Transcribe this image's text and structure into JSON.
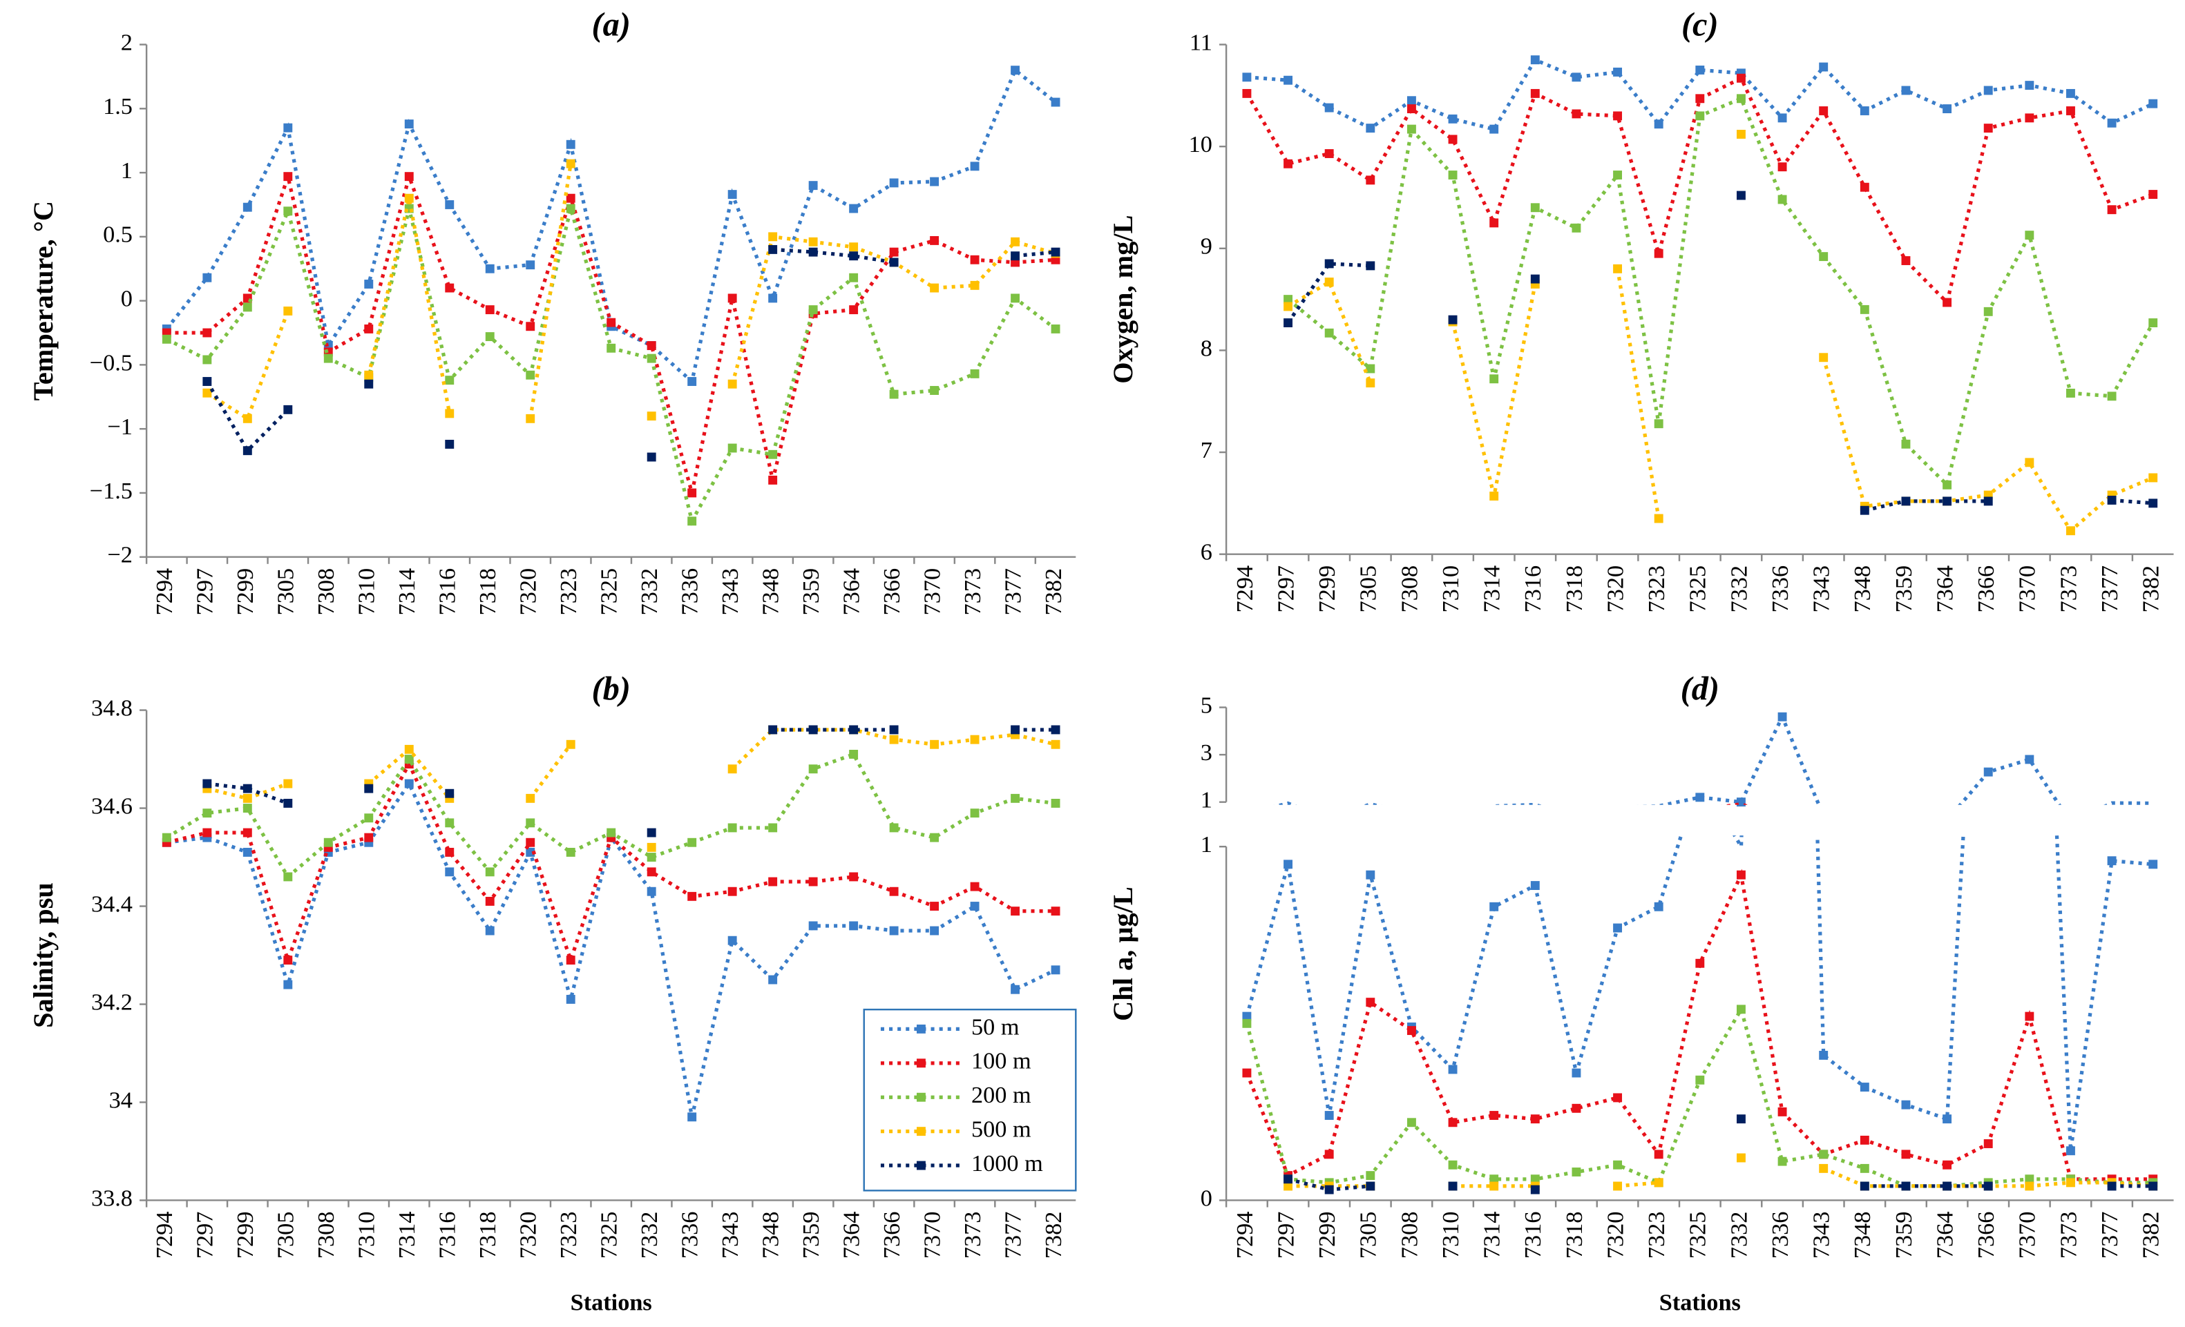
{
  "chart_data": [
    {
      "type": "line",
      "title": "(a)",
      "y_label": "Temperature, °C",
      "categories": [
        "7294",
        "7297",
        "7299",
        "7305",
        "7308",
        "7310",
        "7314",
        "7316",
        "7318",
        "7320",
        "7323",
        "7325",
        "7332",
        "7336",
        "7343",
        "7348",
        "7359",
        "7364",
        "7366",
        "7370",
        "7373",
        "7377",
        "7382"
      ],
      "ylim": [
        -2,
        2
      ],
      "yticks": [
        {
          "value": -2,
          "label": "−2"
        },
        {
          "value": -1.5,
          "label": "−1.5"
        },
        {
          "value": -1,
          "label": "−1"
        },
        {
          "value": -0.5,
          "label": "−0.5"
        },
        0,
        0.5,
        1,
        1.5,
        2
      ],
      "series": [
        {
          "color": "#3a7dc9",
          "values": [
            -0.22,
            0.18,
            0.73,
            1.35,
            -0.35,
            0.13,
            1.38,
            0.75,
            0.25,
            0.28,
            1.22,
            -0.2,
            -0.35,
            -0.63,
            0.83,
            0.02,
            0.9,
            0.72,
            0.92,
            0.93,
            1.05,
            1.8,
            1.55
          ]
        },
        {
          "color": "#e8111a",
          "values": [
            -0.25,
            -0.25,
            0.02,
            0.97,
            -0.4,
            -0.22,
            0.97,
            0.1,
            -0.07,
            -0.2,
            0.8,
            -0.17,
            -0.35,
            -1.5,
            0.02,
            -1.4,
            -0.1,
            -0.07,
            0.38,
            0.47,
            0.32,
            0.3,
            0.32
          ]
        },
        {
          "color": "#7dc143",
          "values": [
            -0.3,
            -0.46,
            -0.05,
            0.7,
            -0.45,
            -0.6,
            0.72,
            -0.62,
            -0.28,
            -0.58,
            0.72,
            -0.37,
            -0.45,
            -1.72,
            -1.15,
            -1.2,
            -0.07,
            0.18,
            -0.73,
            -0.7,
            -0.57,
            0.02,
            -0.22
          ]
        },
        {
          "color": "#ffc000",
          "values": [
            null,
            -0.72,
            -0.92,
            -0.08,
            null,
            -0.58,
            0.8,
            -0.88,
            null,
            -0.92,
            1.07,
            null,
            -0.9,
            null,
            -0.65,
            0.5,
            0.46,
            0.42,
            0.3,
            0.1,
            0.12,
            0.46,
            0.37
          ]
        },
        {
          "color": "#002060",
          "values": [
            null,
            -0.63,
            -1.17,
            -0.85,
            null,
            -0.65,
            null,
            -1.12,
            null,
            null,
            null,
            null,
            -1.22,
            null,
            null,
            0.4,
            0.38,
            0.35,
            0.3,
            null,
            null,
            0.35,
            0.38
          ]
        }
      ]
    },
    {
      "type": "line",
      "title": "(b)",
      "y_label": "Salinity, psu",
      "x_label": "Stations",
      "categories": [
        "7294",
        "7297",
        "7299",
        "7305",
        "7308",
        "7310",
        "7314",
        "7316",
        "7318",
        "7320",
        "7323",
        "7325",
        "7332",
        "7336",
        "7343",
        "7348",
        "7359",
        "7364",
        "7366",
        "7370",
        "7373",
        "7377",
        "7382"
      ],
      "ylim": [
        33.8,
        34.8
      ],
      "yticks": [
        33.8,
        34.0,
        34.2,
        34.4,
        34.6,
        34.8
      ],
      "legend": "lower right",
      "series": [
        {
          "name": "50 m",
          "color": "#3a7dc9",
          "values": [
            34.53,
            34.54,
            34.51,
            34.24,
            34.51,
            34.53,
            34.65,
            34.47,
            34.35,
            34.51,
            34.21,
            34.54,
            34.43,
            33.97,
            34.33,
            34.25,
            34.36,
            34.36,
            34.35,
            34.35,
            34.4,
            34.23,
            34.27
          ]
        },
        {
          "name": "100 m",
          "color": "#e8111a",
          "values": [
            34.53,
            34.55,
            34.55,
            34.29,
            34.52,
            34.54,
            34.69,
            34.51,
            34.41,
            34.53,
            34.29,
            34.54,
            34.47,
            34.42,
            34.43,
            34.45,
            34.45,
            34.46,
            34.43,
            34.4,
            34.44,
            34.39,
            34.39
          ]
        },
        {
          "name": "200 m",
          "color": "#7dc143",
          "values": [
            34.54,
            34.59,
            34.6,
            34.46,
            34.53,
            34.58,
            34.7,
            34.57,
            34.47,
            34.57,
            34.51,
            34.55,
            34.5,
            34.53,
            34.56,
            34.56,
            34.68,
            34.71,
            34.56,
            34.54,
            34.59,
            34.62,
            34.61
          ]
        },
        {
          "name": "500 m",
          "color": "#ffc000",
          "values": [
            null,
            34.64,
            34.62,
            34.65,
            null,
            34.65,
            34.72,
            34.62,
            null,
            34.62,
            34.73,
            null,
            34.52,
            null,
            34.68,
            34.76,
            34.76,
            34.76,
            34.74,
            34.73,
            34.74,
            34.75,
            34.73
          ]
        },
        {
          "name": "1000 m",
          "color": "#002060",
          "values": [
            null,
            34.65,
            34.64,
            34.61,
            null,
            34.64,
            null,
            34.63,
            null,
            null,
            null,
            null,
            34.55,
            null,
            null,
            34.76,
            34.76,
            34.76,
            34.76,
            null,
            null,
            34.76,
            34.76
          ]
        }
      ]
    },
    {
      "type": "line",
      "title": "(c)",
      "y_label": "Oxygen, mg/L",
      "categories": [
        "7294",
        "7297",
        "7299",
        "7305",
        "7308",
        "7310",
        "7314",
        "7316",
        "7318",
        "7320",
        "7323",
        "7325",
        "7332",
        "7336",
        "7343",
        "7348",
        "7359",
        "7364",
        "7366",
        "7370",
        "7373",
        "7377",
        "7382"
      ],
      "ylim": [
        6,
        11
      ],
      "yticks": [
        6,
        7,
        8,
        9,
        10,
        11
      ],
      "series": [
        {
          "color": "#3a7dc9",
          "values": [
            10.68,
            10.65,
            10.38,
            10.18,
            10.45,
            10.27,
            10.17,
            10.85,
            10.68,
            10.73,
            10.22,
            10.75,
            10.72,
            10.28,
            10.78,
            10.35,
            10.55,
            10.37,
            10.55,
            10.6,
            10.52,
            10.23,
            10.42
          ]
        },
        {
          "color": "#e8111a",
          "values": [
            10.52,
            9.83,
            9.93,
            9.67,
            10.37,
            10.07,
            9.25,
            10.52,
            10.32,
            10.3,
            8.95,
            10.47,
            10.67,
            9.8,
            10.35,
            9.6,
            8.88,
            8.47,
            10.18,
            10.28,
            10.35,
            9.38,
            9.53
          ]
        },
        {
          "color": "#7dc143",
          "values": [
            null,
            8.5,
            8.17,
            7.82,
            10.17,
            9.72,
            7.72,
            9.4,
            9.2,
            9.72,
            7.28,
            10.3,
            10.47,
            9.48,
            8.92,
            8.4,
            7.08,
            6.68,
            8.38,
            9.13,
            7.58,
            7.55,
            8.27
          ]
        },
        {
          "color": "#ffc000",
          "values": [
            null,
            8.43,
            8.67,
            7.68,
            null,
            8.28,
            6.57,
            8.65,
            null,
            8.8,
            6.35,
            null,
            10.12,
            null,
            7.93,
            6.47,
            6.52,
            6.52,
            6.58,
            6.9,
            6.23,
            6.58,
            6.75
          ]
        },
        {
          "color": "#002060",
          "values": [
            null,
            8.27,
            8.85,
            8.83,
            null,
            8.3,
            null,
            8.7,
            null,
            null,
            null,
            null,
            9.52,
            null,
            null,
            6.43,
            6.52,
            6.52,
            6.52,
            null,
            null,
            6.53,
            6.5
          ]
        }
      ]
    },
    {
      "type": "line",
      "title": "(d)",
      "y_label": "Chl a, µg/L",
      "x_label": "Stations",
      "categories": [
        "7294",
        "7297",
        "7299",
        "7305",
        "7308",
        "7310",
        "7314",
        "7316",
        "7318",
        "7320",
        "7323",
        "7325",
        "7332",
        "7336",
        "7343",
        "7348",
        "7359",
        "7364",
        "7366",
        "7370",
        "7373",
        "7377",
        "7382"
      ],
      "ylim": [
        0,
        1
      ],
      "yticks": [
        0,
        1
      ],
      "y2lim": [
        1,
        5
      ],
      "y2ticks": [
        1,
        3,
        5
      ],
      "broken_axis": true,
      "series": [
        {
          "color": "#3a7dc9",
          "values": [
            0.52,
            0.95,
            0.24,
            0.92,
            0.49,
            0.37,
            0.83,
            0.89,
            0.36,
            0.77,
            0.83,
            1.2,
            1.0,
            4.6,
            0.41,
            0.32,
            0.27,
            0.23,
            2.27,
            2.8,
            0.14,
            0.96,
            0.95
          ]
        },
        {
          "color": "#e8111a",
          "values": [
            0.36,
            0.07,
            0.13,
            0.56,
            0.48,
            0.22,
            0.24,
            0.23,
            0.26,
            0.29,
            0.13,
            0.67,
            0.92,
            0.25,
            0.13,
            0.17,
            0.13,
            0.1,
            0.16,
            0.52,
            0.06,
            0.06,
            0.06
          ]
        },
        {
          "color": "#7dc143",
          "values": [
            0.5,
            0.06,
            0.05,
            0.07,
            0.22,
            0.1,
            0.06,
            0.06,
            0.08,
            0.1,
            0.05,
            0.34,
            0.54,
            0.11,
            0.13,
            0.09,
            0.04,
            0.04,
            0.05,
            0.06,
            0.06,
            0.05,
            0.05
          ]
        },
        {
          "color": "#ffc000",
          "values": [
            null,
            0.04,
            0.04,
            0.04,
            null,
            0.04,
            0.04,
            0.04,
            null,
            0.04,
            0.05,
            null,
            0.12,
            null,
            0.09,
            0.04,
            0.04,
            0.04,
            0.04,
            0.04,
            0.05,
            0.05,
            0.04
          ]
        },
        {
          "color": "#002060",
          "values": [
            null,
            0.06,
            0.03,
            0.04,
            null,
            0.04,
            null,
            0.03,
            null,
            null,
            null,
            null,
            0.23,
            null,
            null,
            0.04,
            0.04,
            0.04,
            0.04,
            null,
            null,
            0.04,
            0.04
          ]
        }
      ]
    }
  ]
}
